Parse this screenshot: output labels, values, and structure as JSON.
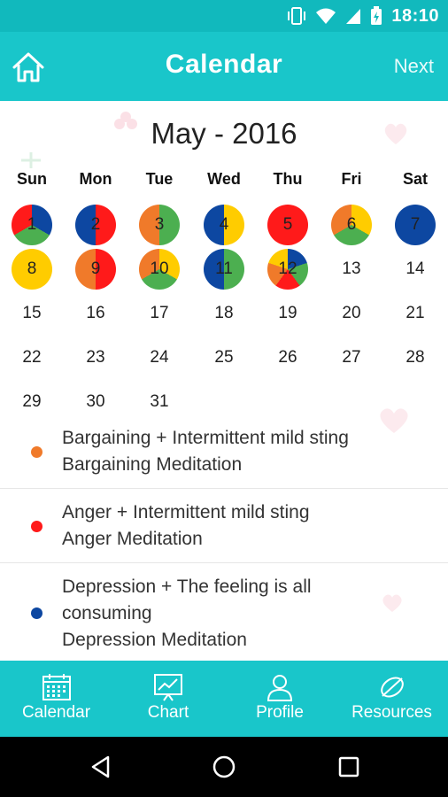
{
  "status_bar": {
    "time": "18:10"
  },
  "app_bar": {
    "title": "Calendar",
    "next_label": "Next"
  },
  "calendar": {
    "month_title": "May - 2016",
    "weekdays": [
      "Sun",
      "Mon",
      "Tue",
      "Wed",
      "Thu",
      "Fri",
      "Sat"
    ],
    "days": [
      {
        "day": "1",
        "colors": [
          "#0d47a1",
          "#4caf50",
          "#ff1a1a"
        ]
      },
      {
        "day": "2",
        "colors": [
          "#ff1a1a",
          "#0d47a1"
        ]
      },
      {
        "day": "3",
        "colors": [
          "#4caf50",
          "#f07a2a"
        ]
      },
      {
        "day": "4",
        "colors": [
          "#ffcc00",
          "#0d47a1"
        ]
      },
      {
        "day": "5",
        "colors": [
          "#ff1a1a"
        ]
      },
      {
        "day": "6",
        "colors": [
          "#ffcc00",
          "#4caf50",
          "#f07a2a"
        ]
      },
      {
        "day": "7",
        "colors": [
          "#0d47a1"
        ]
      },
      {
        "day": "8",
        "colors": [
          "#ffcc00"
        ]
      },
      {
        "day": "9",
        "colors": [
          "#ff1a1a",
          "#f07a2a"
        ]
      },
      {
        "day": "10",
        "colors": [
          "#ffcc00",
          "#4caf50",
          "#f07a2a"
        ]
      },
      {
        "day": "11",
        "colors": [
          "#4caf50",
          "#0d47a1"
        ]
      },
      {
        "day": "12",
        "colors": [
          "#0d47a1",
          "#4caf50",
          "#ff1a1a",
          "#f07a2a",
          "#ffcc00"
        ]
      },
      {
        "day": "13",
        "colors": []
      },
      {
        "day": "14",
        "colors": []
      },
      {
        "day": "15",
        "colors": []
      },
      {
        "day": "16",
        "colors": []
      },
      {
        "day": "17",
        "colors": []
      },
      {
        "day": "18",
        "colors": []
      },
      {
        "day": "19",
        "colors": []
      },
      {
        "day": "20",
        "colors": []
      },
      {
        "day": "21",
        "colors": []
      },
      {
        "day": "22",
        "colors": []
      },
      {
        "day": "23",
        "colors": []
      },
      {
        "day": "24",
        "colors": []
      },
      {
        "day": "25",
        "colors": []
      },
      {
        "day": "26",
        "colors": []
      },
      {
        "day": "27",
        "colors": []
      },
      {
        "day": "28",
        "colors": []
      },
      {
        "day": "29",
        "colors": []
      },
      {
        "day": "30",
        "colors": []
      },
      {
        "day": "31",
        "colors": []
      }
    ]
  },
  "legend": [
    {
      "color": "#f07a2a",
      "lines": [
        "Bargaining + Intermittent mild sting",
        "Bargaining Meditation"
      ]
    },
    {
      "color": "#ff1a1a",
      "lines": [
        "Anger + Intermittent mild sting",
        "Anger Meditation"
      ]
    },
    {
      "color": "#0d47a1",
      "lines": [
        "Depression + The feeling is all",
        "consuming",
        "Depression Meditation"
      ]
    }
  ],
  "bottom_nav": [
    {
      "label": "Calendar",
      "icon": "calendar-icon"
    },
    {
      "label": "Chart",
      "icon": "chart-icon"
    },
    {
      "label": "Profile",
      "icon": "profile-icon"
    },
    {
      "label": "Resources",
      "icon": "compass-icon"
    }
  ]
}
